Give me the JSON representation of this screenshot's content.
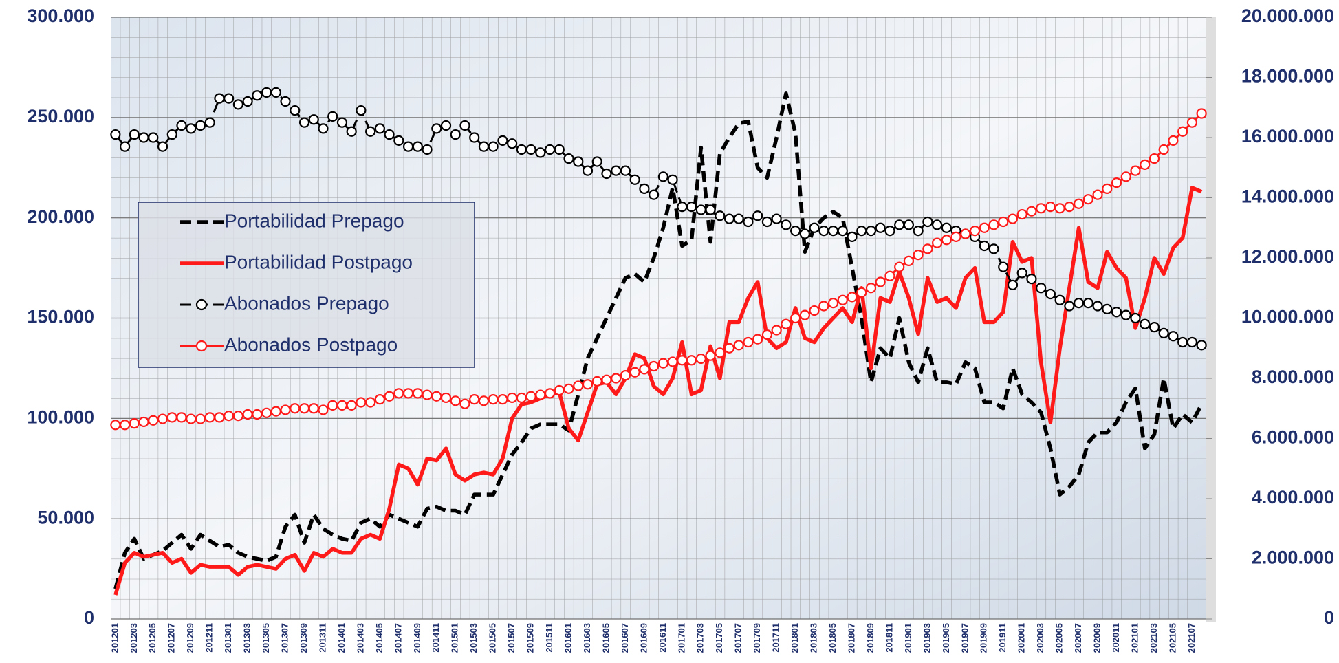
{
  "chart_data": {
    "type": "line",
    "categories": [
      "201201",
      null,
      "201203",
      null,
      "201205",
      null,
      "201207",
      null,
      "201209",
      null,
      "201211",
      null,
      "201301",
      null,
      "201303",
      null,
      "201305",
      null,
      "201307",
      null,
      "201309",
      null,
      "201311",
      null,
      "201401",
      null,
      "201403",
      null,
      "201405",
      null,
      "201407",
      null,
      "201409",
      null,
      "201411",
      null,
      "201501",
      null,
      "201503",
      null,
      "201505",
      null,
      "201507",
      null,
      "201509",
      null,
      "201511",
      null,
      "201601",
      null,
      "201603",
      null,
      "201605",
      null,
      "201607",
      null,
      "201609",
      null,
      "201611",
      null,
      "201701",
      null,
      "201703",
      null,
      "201705",
      null,
      "201707",
      null,
      "201709",
      null,
      "201711",
      null,
      "201801",
      null,
      "201803",
      null,
      "201805",
      null,
      "201807",
      null,
      "201809",
      null,
      "201811",
      null,
      "201901",
      null,
      "201903",
      null,
      "201905",
      null,
      "201907",
      null,
      "201909",
      null,
      "201911",
      null,
      "202001",
      null,
      "202003",
      null,
      "202005",
      null,
      "202007",
      null,
      "202009",
      null,
      "202011",
      null,
      "202101",
      null,
      "202103",
      null,
      "202105",
      null,
      "202107",
      null
    ],
    "series": [
      {
        "name": "Portabilidad Prepago",
        "color": "#000000",
        "dash": true,
        "markers": false,
        "values": [
          15000,
          33000,
          40000,
          30000,
          32000,
          34000,
          38000,
          42000,
          35000,
          42000,
          39000,
          36000,
          37000,
          33000,
          31000,
          30000,
          29000,
          31000,
          46000,
          52000,
          38000,
          52000,
          45000,
          42000,
          40000,
          39000,
          48000,
          50000,
          46000,
          52000,
          50000,
          48000,
          46000,
          55000,
          56000,
          54000,
          54000,
          52000,
          62000,
          62000,
          62000,
          72000,
          82000,
          88000,
          95000,
          97000,
          97000,
          97000,
          94000,
          112000,
          130000,
          140000,
          150000,
          160000,
          170000,
          172000,
          168000,
          180000,
          195000,
          215000,
          186000,
          189000,
          235000,
          188000,
          232000,
          240000,
          247000,
          248000,
          225000,
          220000,
          240000,
          262000,
          242000,
          183000,
          195000,
          200000,
          203000,
          200000,
          175000,
          150000,
          118000,
          135000,
          130000,
          150000,
          128000,
          118000,
          135000,
          118000,
          118000,
          117000,
          128000,
          125000,
          108000,
          108000,
          105000,
          125000,
          112000,
          108000,
          103000,
          85000,
          62000,
          66000,
          72000,
          88000,
          93000,
          93000,
          98000,
          108000,
          115000,
          85000,
          92000,
          120000,
          95000,
          102000,
          98000,
          107000
        ]
      },
      {
        "name": "Portabilidad Postpago",
        "color": "#ff1a1a",
        "dash": false,
        "markers": false,
        "values": [
          12000,
          28000,
          33000,
          31000,
          32000,
          33000,
          28000,
          30000,
          23000,
          27000,
          26000,
          26000,
          26000,
          22000,
          26000,
          27000,
          26000,
          25000,
          30000,
          32000,
          24000,
          33000,
          31000,
          35000,
          33000,
          33000,
          40000,
          42000,
          40000,
          55000,
          77000,
          75000,
          67000,
          80000,
          79000,
          85000,
          72000,
          69000,
          72000,
          73000,
          72000,
          80000,
          100000,
          107000,
          108000,
          110000,
          112000,
          113000,
          95000,
          89000,
          103000,
          117000,
          118000,
          112000,
          120000,
          132000,
          130000,
          116000,
          112000,
          120000,
          138000,
          112000,
          114000,
          136000,
          120000,
          148000,
          148000,
          160000,
          168000,
          140000,
          135000,
          138000,
          155000,
          140000,
          138000,
          145000,
          150000,
          155000,
          148000,
          165000,
          125000,
          160000,
          158000,
          173000,
          160000,
          142000,
          170000,
          158000,
          160000,
          155000,
          170000,
          175000,
          148000,
          148000,
          153000,
          188000,
          178000,
          180000,
          128000,
          98000,
          135000,
          165000,
          195000,
          168000,
          165000,
          183000,
          175000,
          170000,
          145000,
          160000,
          180000,
          172000,
          185000,
          190000,
          215000,
          213000
        ]
      },
      {
        "name": "Abonados Prepago",
        "color": "#000000",
        "dash": true,
        "markers": true,
        "axis": "y2",
        "values": [
          16100000,
          15700000,
          16100000,
          16000000,
          16000000,
          15700000,
          16100000,
          16400000,
          16300000,
          16400000,
          16500000,
          17300000,
          17300000,
          17100000,
          17200000,
          17400000,
          17500000,
          17500000,
          17200000,
          16900000,
          16500000,
          16600000,
          16300000,
          16700000,
          16500000,
          16200000,
          16900000,
          16200000,
          16300000,
          16100000,
          15900000,
          15700000,
          15700000,
          15600000,
          16300000,
          16400000,
          16100000,
          16400000,
          16000000,
          15700000,
          15700000,
          15900000,
          15800000,
          15600000,
          15600000,
          15500000,
          15600000,
          15600000,
          15300000,
          15200000,
          14900000,
          15200000,
          14800000,
          14900000,
          14900000,
          14600000,
          14300000,
          14100000,
          14700000,
          14600000,
          13700000,
          13700000,
          13600000,
          13600000,
          13400000,
          13300000,
          13300000,
          13200000,
          13400000,
          13200000,
          13300000,
          13100000,
          12900000,
          12800000,
          13000000,
          12900000,
          12900000,
          12900000,
          12700000,
          12900000,
          12900000,
          13000000,
          12900000,
          13100000,
          13100000,
          12900000,
          13200000,
          13100000,
          13000000,
          12900000,
          12800000,
          12700000,
          12400000,
          12300000,
          11700000,
          11100000,
          11500000,
          11300000,
          11000000,
          10800000,
          10600000,
          10400000,
          10500000,
          10500000,
          10400000,
          10300000,
          10200000,
          10100000,
          10000000,
          9800000,
          9700000,
          9500000,
          9400000,
          9200000,
          9200000,
          9100000
        ]
      },
      {
        "name": "Abonados Postpago",
        "color": "#ff1a1a",
        "dash": false,
        "markers": true,
        "axis": "y2",
        "values": [
          6450000,
          6450000,
          6500000,
          6550000,
          6600000,
          6650000,
          6700000,
          6700000,
          6650000,
          6650000,
          6700000,
          6700000,
          6750000,
          6750000,
          6800000,
          6800000,
          6850000,
          6900000,
          6950000,
          7000000,
          7000000,
          7000000,
          6950000,
          7100000,
          7100000,
          7100000,
          7200000,
          7200000,
          7300000,
          7400000,
          7500000,
          7500000,
          7500000,
          7450000,
          7400000,
          7350000,
          7250000,
          7150000,
          7300000,
          7250000,
          7300000,
          7300000,
          7350000,
          7350000,
          7400000,
          7450000,
          7500000,
          7600000,
          7650000,
          7750000,
          7800000,
          7900000,
          7950000,
          8000000,
          8100000,
          8200000,
          8300000,
          8400000,
          8500000,
          8550000,
          8600000,
          8600000,
          8650000,
          8750000,
          8850000,
          9000000,
          9100000,
          9200000,
          9300000,
          9450000,
          9600000,
          9800000,
          10000000,
          10100000,
          10250000,
          10400000,
          10500000,
          10600000,
          10700000,
          10850000,
          11000000,
          11200000,
          11400000,
          11700000,
          11900000,
          12100000,
          12300000,
          12500000,
          12600000,
          12700000,
          12800000,
          12900000,
          13000000,
          13100000,
          13200000,
          13300000,
          13450000,
          13550000,
          13650000,
          13700000,
          13650000,
          13700000,
          13800000,
          13950000,
          14100000,
          14300000,
          14500000,
          14700000,
          14900000,
          15100000,
          15300000,
          15600000,
          15900000,
          16200000,
          16500000,
          16800000
        ]
      }
    ],
    "ylim": [
      0,
      300000
    ],
    "yticks": [
      0,
      {
        "value": 50000,
        "label": "50.000"
      },
      {
        "value": 100000,
        "label": "100.000"
      },
      {
        "value": 150000,
        "label": "150.000"
      },
      {
        "value": 200000,
        "label": "200.000"
      },
      {
        "value": 250000,
        "label": "250.000"
      },
      {
        "value": 300000,
        "label": "300.000"
      }
    ],
    "y2lim": [
      0,
      20000000
    ],
    "y2ticks": [
      0,
      {
        "value": 2000000,
        "label": "2.000.000"
      },
      {
        "value": 4000000,
        "label": "4.000.000"
      },
      {
        "value": 6000000,
        "label": "6.000.000"
      },
      {
        "value": 8000000,
        "label": "8.000.000"
      },
      {
        "value": 10000000,
        "label": "10.000.000"
      },
      {
        "value": 12000000,
        "label": "12.000.000"
      },
      {
        "value": 14000000,
        "label": "14.000.000"
      },
      {
        "value": 16000000,
        "label": "16.000.000"
      },
      {
        "value": 18000000,
        "label": "18.000.000"
      },
      {
        "value": 20000000,
        "label": "20.000.000"
      }
    ],
    "grid": true,
    "legend": "upper-left"
  }
}
